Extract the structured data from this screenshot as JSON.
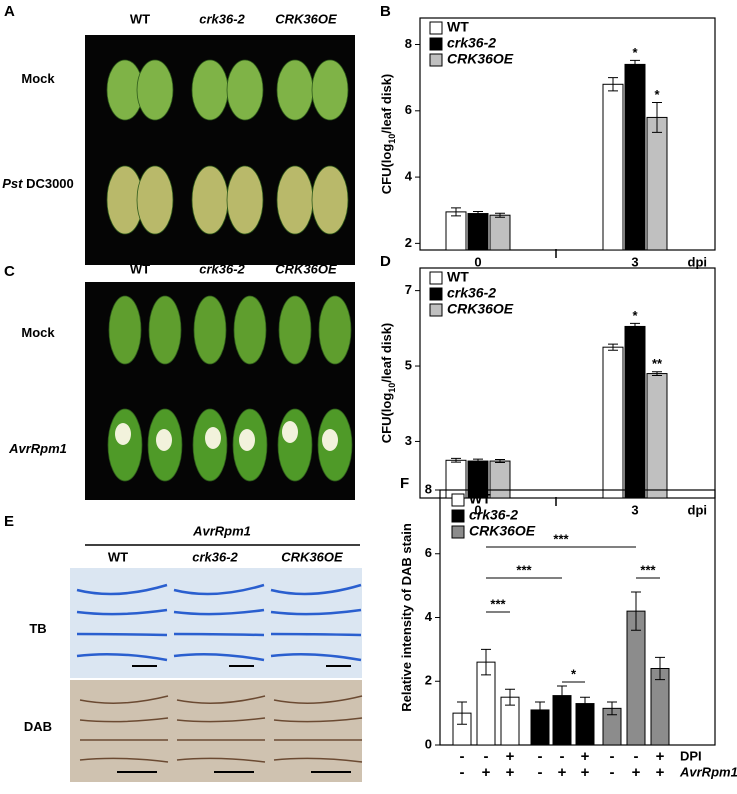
{
  "figure": {
    "A": {
      "letter": "A",
      "columns": [
        "WT",
        "crk36-2",
        "CRK36OE"
      ],
      "rows": [
        {
          "italic": "",
          "rest": "Mock"
        },
        {
          "italic": "Pst",
          "rest": " DC3000"
        }
      ]
    },
    "C": {
      "letter": "C",
      "columns": [
        "WT",
        "crk36-2",
        "CRK36OE"
      ],
      "rows": [
        {
          "italic": "",
          "rest": "Mock"
        },
        {
          "italic": "AvrRpm1",
          "rest": ""
        }
      ]
    },
    "E": {
      "letter": "E",
      "header": "AvrRpm1",
      "columns": [
        "WT",
        "crk36-2",
        "CRK36OE"
      ],
      "rows": [
        {
          "italic": "",
          "rest": "TB"
        },
        {
          "italic": "",
          "rest": "DAB"
        }
      ]
    }
  },
  "chart_data": [
    {
      "type": "bar",
      "panel": "B",
      "ylabel": [
        "CFU(log",
        "10",
        "/leaf disk)"
      ],
      "xlabel": "dpi",
      "categories": [
        "0",
        "3"
      ],
      "ylim": [
        1.8,
        8.8
      ],
      "yticks": [
        2,
        4,
        6,
        8
      ],
      "series": [
        {
          "name": "WT",
          "color": "#ffffff",
          "values": [
            2.95,
            6.8
          ],
          "errors": [
            0.12,
            0.2
          ],
          "annotations": [
            null,
            null
          ]
        },
        {
          "name": "crk36-2",
          "color": "#000000",
          "values": [
            2.9,
            7.4
          ],
          "errors": [
            0.06,
            0.12
          ],
          "annotations": [
            null,
            "*"
          ]
        },
        {
          "name": "CRK36OE",
          "color": "#c0c0c0",
          "values": [
            2.85,
            5.8
          ],
          "errors": [
            0.06,
            0.45
          ],
          "annotations": [
            null,
            "*"
          ]
        }
      ]
    },
    {
      "type": "bar",
      "panel": "D",
      "ylabel": [
        "CFU(log",
        "10",
        "/leaf disk)"
      ],
      "xlabel": "dpi",
      "categories": [
        "0",
        "3"
      ],
      "ylim": [
        1.5,
        7.6
      ],
      "yticks": [
        3,
        5,
        7
      ],
      "series": [
        {
          "name": "WT",
          "color": "#ffffff",
          "values": [
            2.5,
            5.5
          ],
          "errors": [
            0.05,
            0.08
          ],
          "annotations": [
            null,
            null
          ]
        },
        {
          "name": "crk36-2",
          "color": "#000000",
          "values": [
            2.48,
            6.05
          ],
          "errors": [
            0.05,
            0.08
          ],
          "annotations": [
            null,
            "*"
          ]
        },
        {
          "name": "CRK36OE",
          "color": "#c0c0c0",
          "values": [
            2.48,
            4.8
          ],
          "errors": [
            0.04,
            0.05
          ],
          "annotations": [
            null,
            "**"
          ]
        }
      ]
    },
    {
      "type": "bar",
      "panel": "F",
      "ylabel": [
        "Relative intensity of DAB stain"
      ],
      "ylim": [
        0,
        8
      ],
      "yticks": [
        0,
        2,
        4,
        6,
        8
      ],
      "conditions": [
        {
          "name": "DPI",
          "signs": [
            "-",
            "-",
            "+"
          ]
        },
        {
          "name": "AvrRpm1",
          "signs": [
            "-",
            "+",
            "+"
          ]
        }
      ],
      "significance": [
        "***",
        "***",
        "***",
        "*",
        "***"
      ],
      "series": [
        {
          "name": "WT",
          "color": "#ffffff",
          "values": [
            1.0,
            2.6,
            1.5
          ],
          "errors": [
            0.35,
            0.4,
            0.25
          ]
        },
        {
          "name": "crk36-2",
          "color": "#000000",
          "values": [
            1.1,
            1.55,
            1.3
          ],
          "errors": [
            0.25,
            0.3,
            0.2
          ]
        },
        {
          "name": "CRK36OE",
          "color": "#8c8c8c",
          "values": [
            1.15,
            4.2,
            2.4
          ],
          "errors": [
            0.2,
            0.6,
            0.35
          ]
        }
      ]
    }
  ]
}
